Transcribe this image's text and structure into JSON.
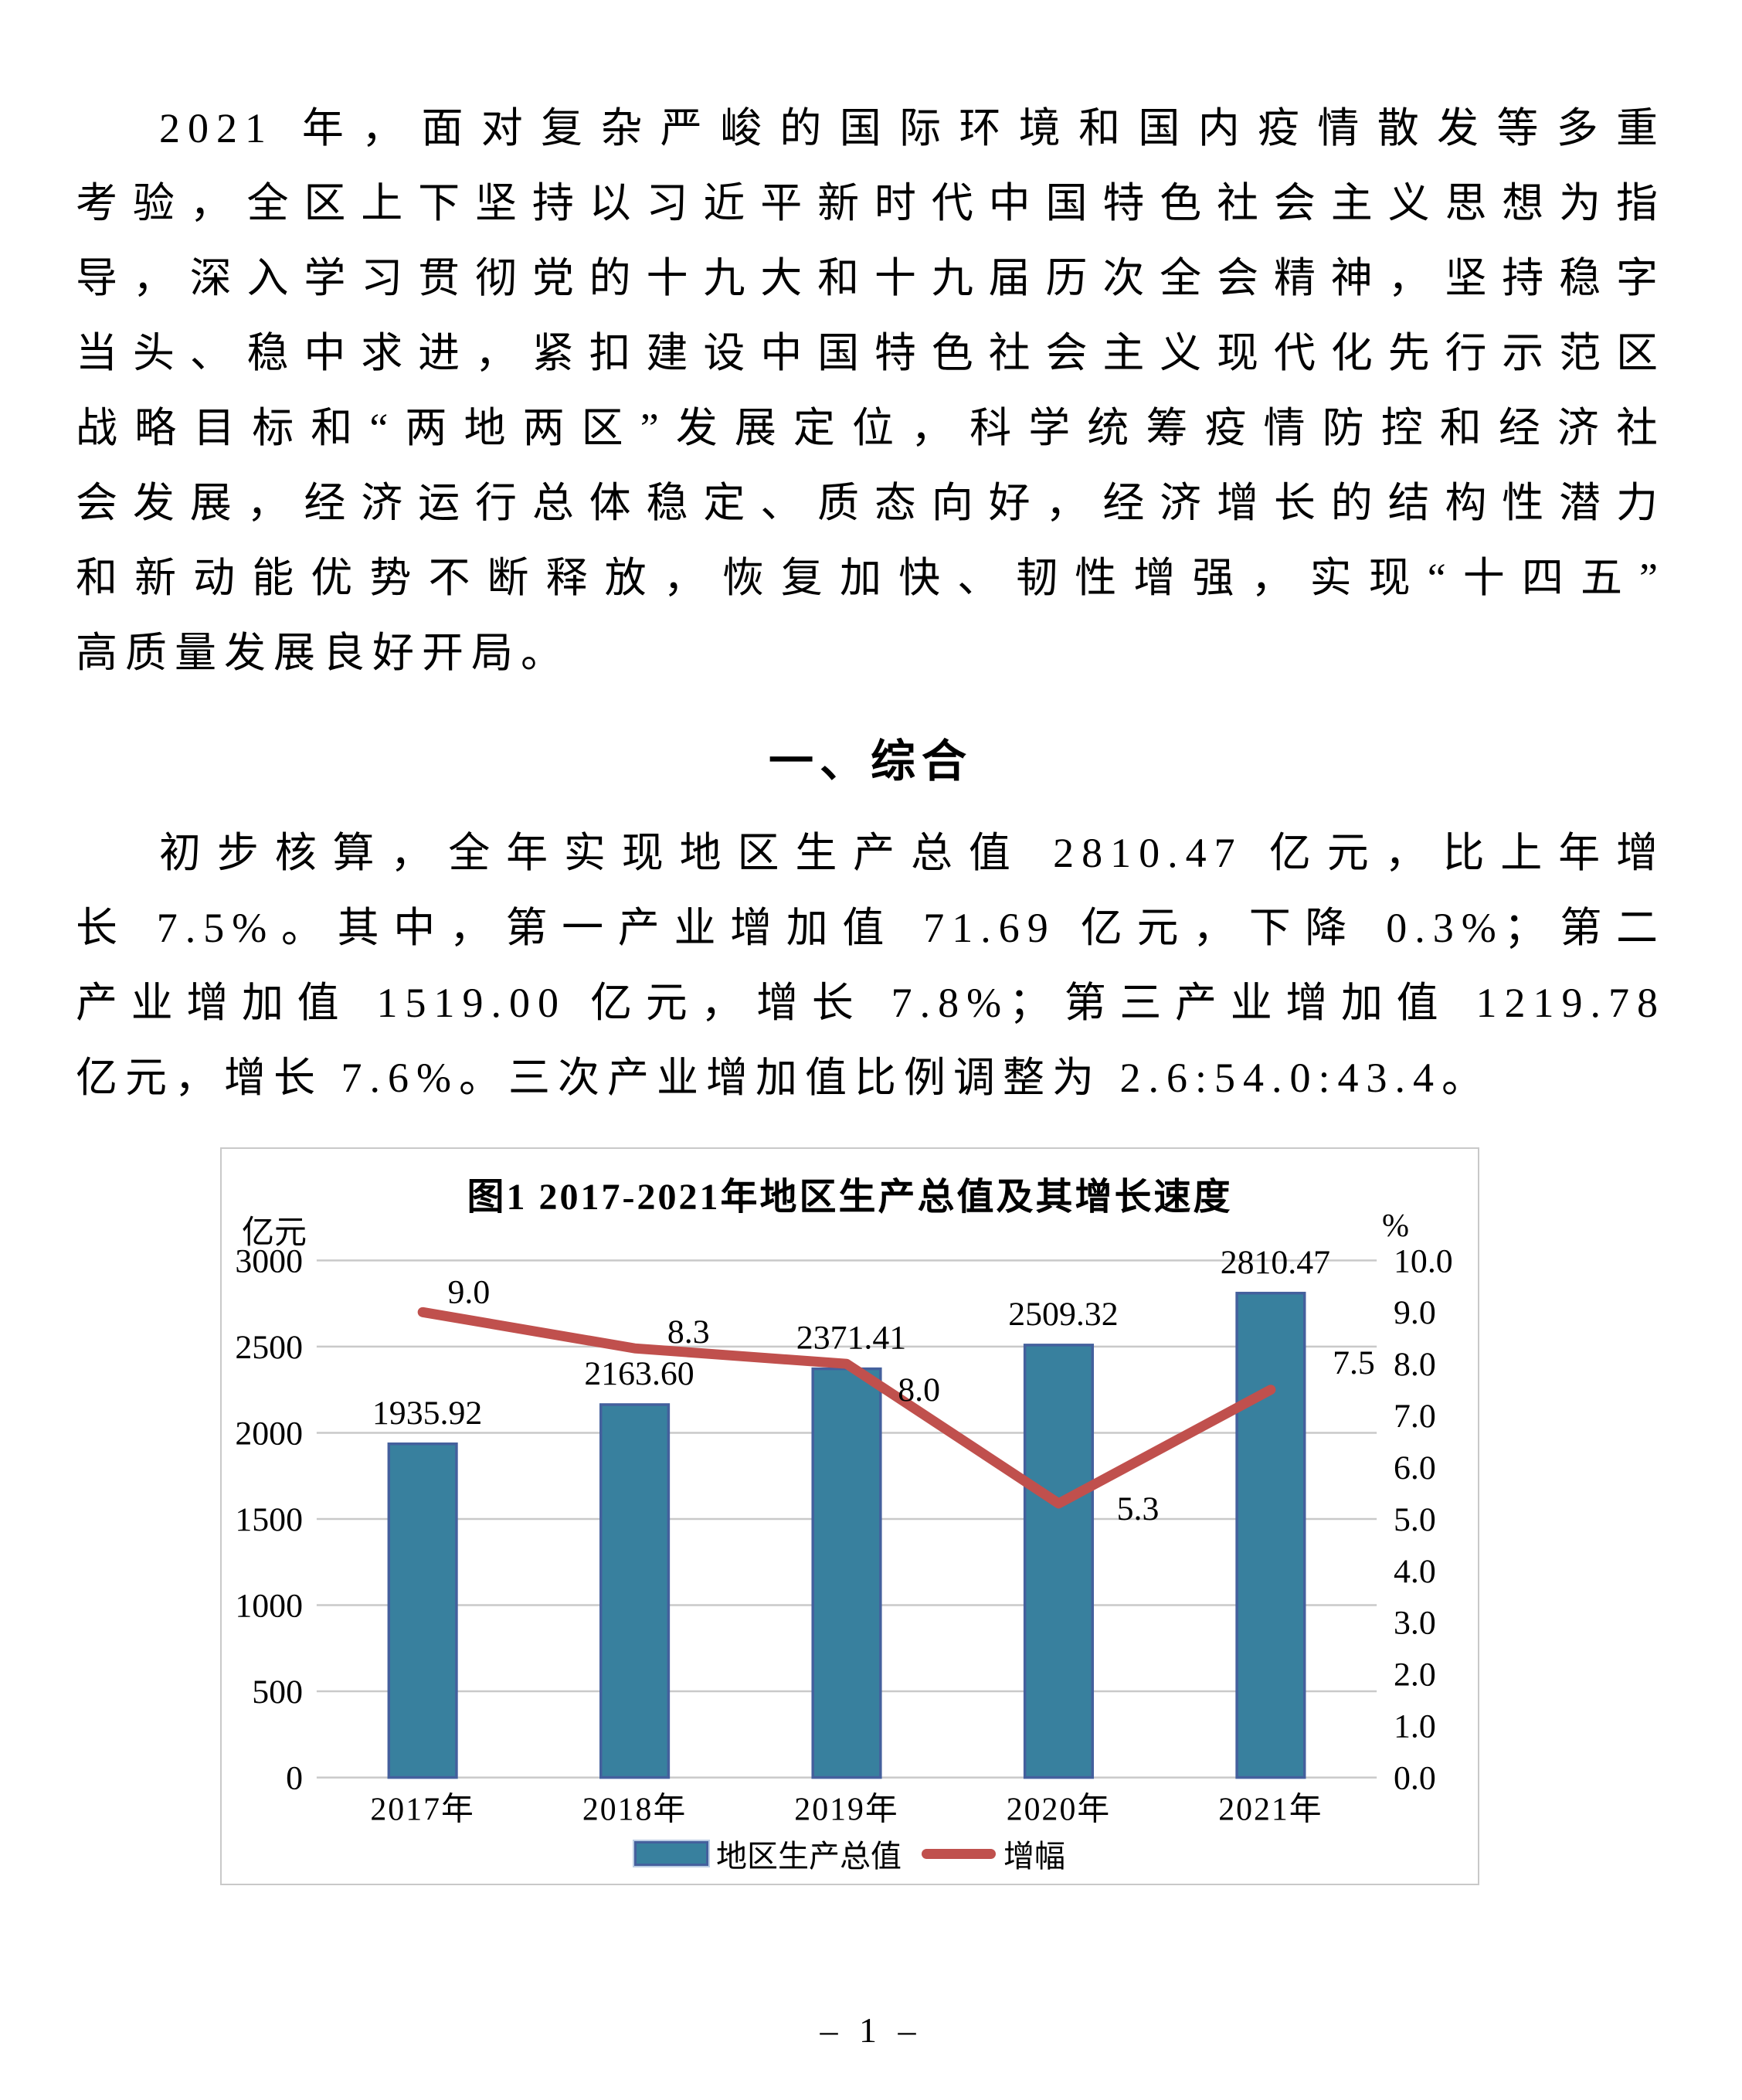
{
  "page": {
    "paragraph1_lines": [
      "2021 年，面对复杂严峻的国际环境和国内疫情散发等多重",
      "考验，全区上下坚持以习近平新时代中国特色社会主义思想为指",
      "导，深入学习贯彻党的十九大和十九届历次全会精神，坚持稳字",
      "当头、稳中求进，紧扣建设中国特色社会主义现代化先行示范区",
      "战略目标和“两地两区”发展定位，科学统筹疫情防控和经济社",
      "会发展，经济运行总体稳定、质态向好，经济增长的结构性潜力",
      "和新动能优势不断释放，恢复加快、韧性增强，实现“十四五”",
      "高质量发展良好开局。"
    ],
    "section_heading": "一、综合",
    "paragraph2_lines": [
      "初步核算，全年实现地区生产总值 2810.47 亿元，比上年增",
      "长 7.5%。其中，第一产业增加值 71.69 亿元，下降 0.3%；第二",
      "产业增加值 1519.00 亿元，增长 7.8%；第三产业增加值 1219.78",
      "亿元，增长 7.6%。三次产业增加值比例调整为 2.6:54.0:43.4。"
    ],
    "page_number": "– 1 –"
  },
  "chart_data": {
    "type": "bar",
    "combo": "bar+line",
    "title": "图1 2017-2021年地区生产总值及其增长速度",
    "categories": [
      "2017年",
      "2018年",
      "2019年",
      "2020年",
      "2021年"
    ],
    "series": [
      {
        "name": "地区生产总值",
        "type": "bar",
        "axis": "left",
        "values": [
          1935.92,
          2163.6,
          2371.41,
          2509.32,
          2810.47
        ],
        "labels": [
          "1935.92",
          "2163.60",
          "2371.41",
          "2509.32",
          "2810.47"
        ],
        "color": "#38809E",
        "border_color": "#44609D"
      },
      {
        "name": "增幅",
        "type": "line",
        "axis": "right",
        "values": [
          9.0,
          8.3,
          8.0,
          5.3,
          7.5
        ],
        "labels": [
          "9.0",
          "8.3",
          "8.0",
          "5.3",
          "7.5"
        ],
        "color": "#C0504D"
      }
    ],
    "left_axis": {
      "label": "亿元",
      "min": 0,
      "max": 3000,
      "step": 500,
      "ticks": [
        "3000",
        "2500",
        "2000",
        "1500",
        "1000",
        "500",
        "0"
      ]
    },
    "right_axis": {
      "label": "%",
      "min": 0,
      "max": 10,
      "step": 1,
      "ticks": [
        "10.0",
        "9.0",
        "8.0",
        "7.0",
        "6.0",
        "5.0",
        "4.0",
        "3.0",
        "2.0",
        "1.0",
        "0.0"
      ]
    },
    "grid": true,
    "grid_color": "#C9C9C9",
    "legend_position": "bottom",
    "legend": [
      "地区生产总值",
      "增幅"
    ]
  }
}
